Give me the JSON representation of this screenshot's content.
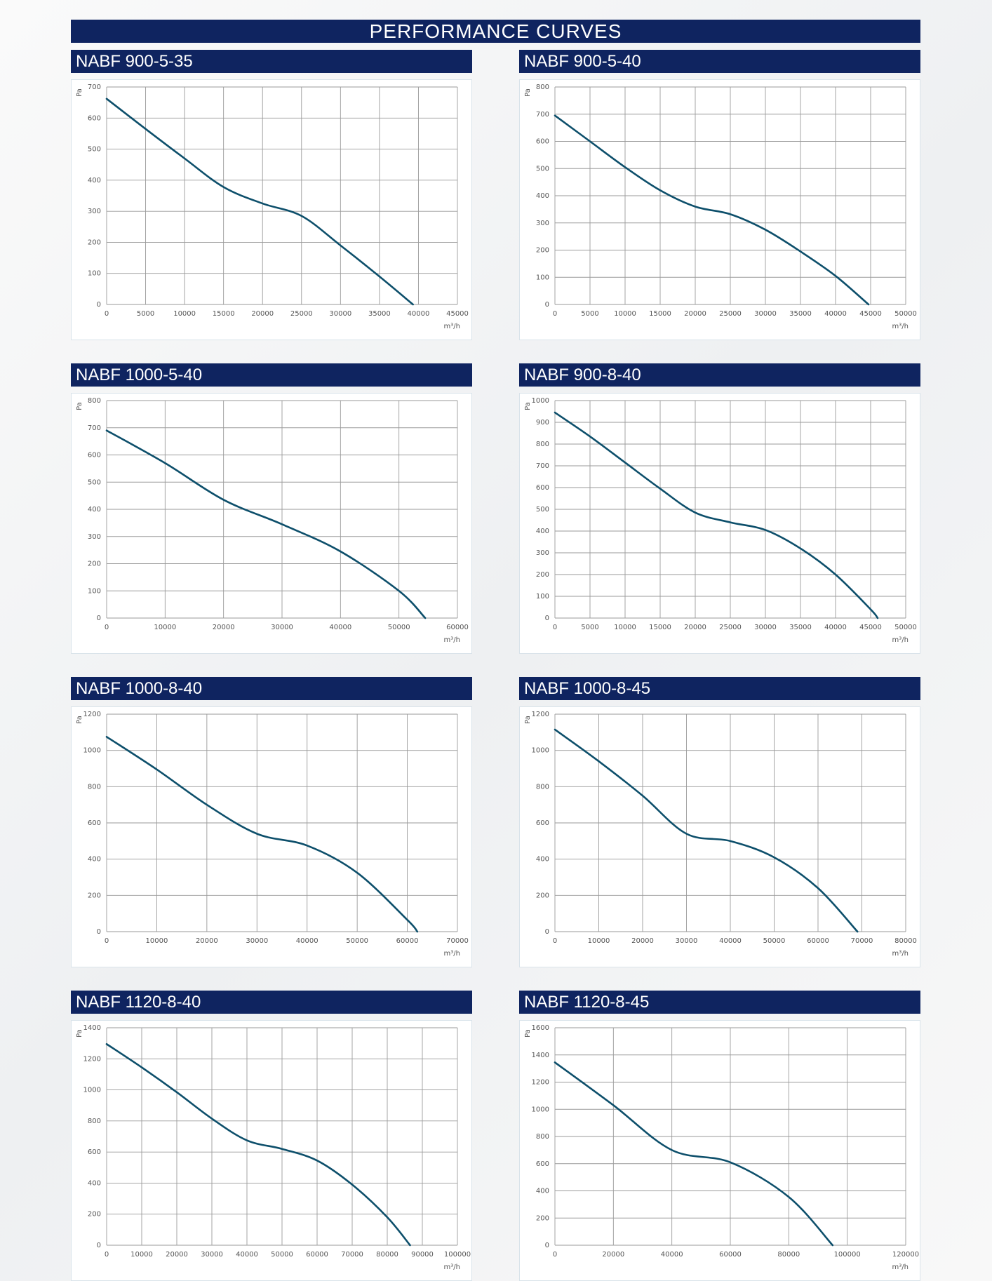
{
  "page": {
    "title": "PERFORMANCE CURVES"
  },
  "chart_data": [
    {
      "type": "line",
      "title": "NABF 900-5-35",
      "ylabel": "Pa",
      "xlabel": "m³/h",
      "xlim": [
        0,
        45000
      ],
      "ylim": [
        0,
        700
      ],
      "x_ticks": [
        0,
        5000,
        10000,
        15000,
        20000,
        25000,
        30000,
        35000,
        40000,
        45000
      ],
      "y_ticks": [
        0,
        100,
        200,
        300,
        400,
        500,
        600,
        700
      ],
      "grid": true,
      "color": "#0d4f6b",
      "series": [
        {
          "x": [
            0,
            5000,
            10000,
            15000,
            20000,
            25000,
            30000,
            35000,
            39300
          ],
          "y": [
            662,
            565,
            470,
            378,
            325,
            285,
            190,
            90,
            0
          ]
        }
      ]
    },
    {
      "type": "line",
      "title": "NABF 900-5-40",
      "ylabel": "Pa",
      "xlabel": "m³/h",
      "xlim": [
        0,
        50000
      ],
      "ylim": [
        0,
        800
      ],
      "x_ticks": [
        0,
        5000,
        10000,
        15000,
        20000,
        25000,
        30000,
        35000,
        40000,
        45000,
        50000
      ],
      "y_ticks": [
        0,
        100,
        200,
        300,
        400,
        500,
        600,
        700,
        800
      ],
      "grid": true,
      "color": "#0d4f6b",
      "series": [
        {
          "x": [
            0,
            5000,
            10000,
            15000,
            20000,
            25000,
            30000,
            35000,
            40000,
            44700
          ],
          "y": [
            695,
            600,
            505,
            420,
            360,
            332,
            275,
            195,
            105,
            0
          ]
        }
      ]
    },
    {
      "type": "line",
      "title": "NABF 1000-5-40",
      "ylabel": "Pa",
      "xlabel": "m³/h",
      "xlim": [
        0,
        60000
      ],
      "ylim": [
        0,
        800
      ],
      "x_ticks": [
        0,
        10000,
        20000,
        30000,
        40000,
        50000,
        60000
      ],
      "y_ticks": [
        0,
        100,
        200,
        300,
        400,
        500,
        600,
        700,
        800
      ],
      "grid": true,
      "color": "#0d4f6b",
      "series": [
        {
          "x": [
            0,
            10000,
            20000,
            30000,
            40000,
            50000,
            54500
          ],
          "y": [
            690,
            570,
            435,
            345,
            245,
            100,
            0
          ]
        }
      ]
    },
    {
      "type": "line",
      "title": "NABF 900-8-40",
      "ylabel": "Pa",
      "xlabel": "m³/h",
      "xlim": [
        0,
        50000
      ],
      "ylim": [
        0,
        1000
      ],
      "x_ticks": [
        0,
        5000,
        10000,
        15000,
        20000,
        25000,
        30000,
        35000,
        40000,
        45000,
        50000
      ],
      "y_ticks": [
        0,
        100,
        200,
        300,
        400,
        500,
        600,
        700,
        800,
        900,
        1000
      ],
      "grid": true,
      "color": "#0d4f6b",
      "series": [
        {
          "x": [
            0,
            5000,
            10000,
            15000,
            20000,
            25000,
            30000,
            35000,
            40000,
            45000,
            46000
          ],
          "y": [
            945,
            835,
            715,
            595,
            485,
            440,
            405,
            320,
            200,
            40,
            0
          ]
        }
      ]
    },
    {
      "type": "line",
      "title": "NABF 1000-8-40",
      "ylabel": "Pa",
      "xlabel": "m³/h",
      "xlim": [
        0,
        70000
      ],
      "ylim": [
        0,
        1200
      ],
      "x_ticks": [
        0,
        10000,
        20000,
        30000,
        40000,
        50000,
        60000,
        70000
      ],
      "y_ticks": [
        0,
        200,
        400,
        600,
        800,
        1000,
        1200
      ],
      "grid": true,
      "color": "#0d4f6b",
      "series": [
        {
          "x": [
            0,
            10000,
            20000,
            30000,
            40000,
            50000,
            60000,
            62000
          ],
          "y": [
            1075,
            895,
            700,
            540,
            475,
            325,
            65,
            0
          ]
        }
      ]
    },
    {
      "type": "line",
      "title": "NABF 1000-8-45",
      "ylabel": "Pa",
      "xlabel": "m³/h",
      "xlim": [
        0,
        80000
      ],
      "ylim": [
        0,
        1200
      ],
      "x_ticks": [
        0,
        10000,
        20000,
        30000,
        40000,
        50000,
        60000,
        70000,
        80000
      ],
      "y_ticks": [
        0,
        200,
        400,
        600,
        800,
        1000,
        1200
      ],
      "grid": true,
      "color": "#0d4f6b",
      "series": [
        {
          "x": [
            0,
            10000,
            20000,
            30000,
            40000,
            50000,
            60000,
            69000
          ],
          "y": [
            1115,
            940,
            750,
            540,
            500,
            410,
            240,
            0
          ]
        }
      ]
    },
    {
      "type": "line",
      "title": "NABF 1120-8-40",
      "ylabel": "Pa",
      "xlabel": "m³/h",
      "xlim": [
        0,
        100000
      ],
      "ylim": [
        0,
        1400
      ],
      "x_ticks": [
        0,
        10000,
        20000,
        30000,
        40000,
        50000,
        60000,
        70000,
        80000,
        90000,
        100000
      ],
      "y_ticks": [
        0,
        200,
        400,
        600,
        800,
        1000,
        1200,
        1400
      ],
      "grid": true,
      "color": "#0d4f6b",
      "series": [
        {
          "x": [
            0,
            10000,
            20000,
            30000,
            40000,
            50000,
            60000,
            70000,
            80000,
            86500
          ],
          "y": [
            1295,
            1145,
            985,
            815,
            675,
            620,
            545,
            390,
            180,
            0
          ]
        }
      ]
    },
    {
      "type": "line",
      "title": "NABF 1120-8-45",
      "ylabel": "Pa",
      "xlabel": "m³/h",
      "xlim": [
        0,
        120000
      ],
      "ylim": [
        0,
        1600
      ],
      "x_ticks": [
        0,
        20000,
        40000,
        60000,
        80000,
        100000,
        120000
      ],
      "y_ticks": [
        0,
        200,
        400,
        600,
        800,
        1000,
        1200,
        1400,
        1600
      ],
      "grid": true,
      "color": "#0d4f6b",
      "series": [
        {
          "x": [
            0,
            20000,
            40000,
            60000,
            80000,
            95000
          ],
          "y": [
            1345,
            1030,
            700,
            610,
            355,
            0
          ]
        }
      ]
    }
  ]
}
